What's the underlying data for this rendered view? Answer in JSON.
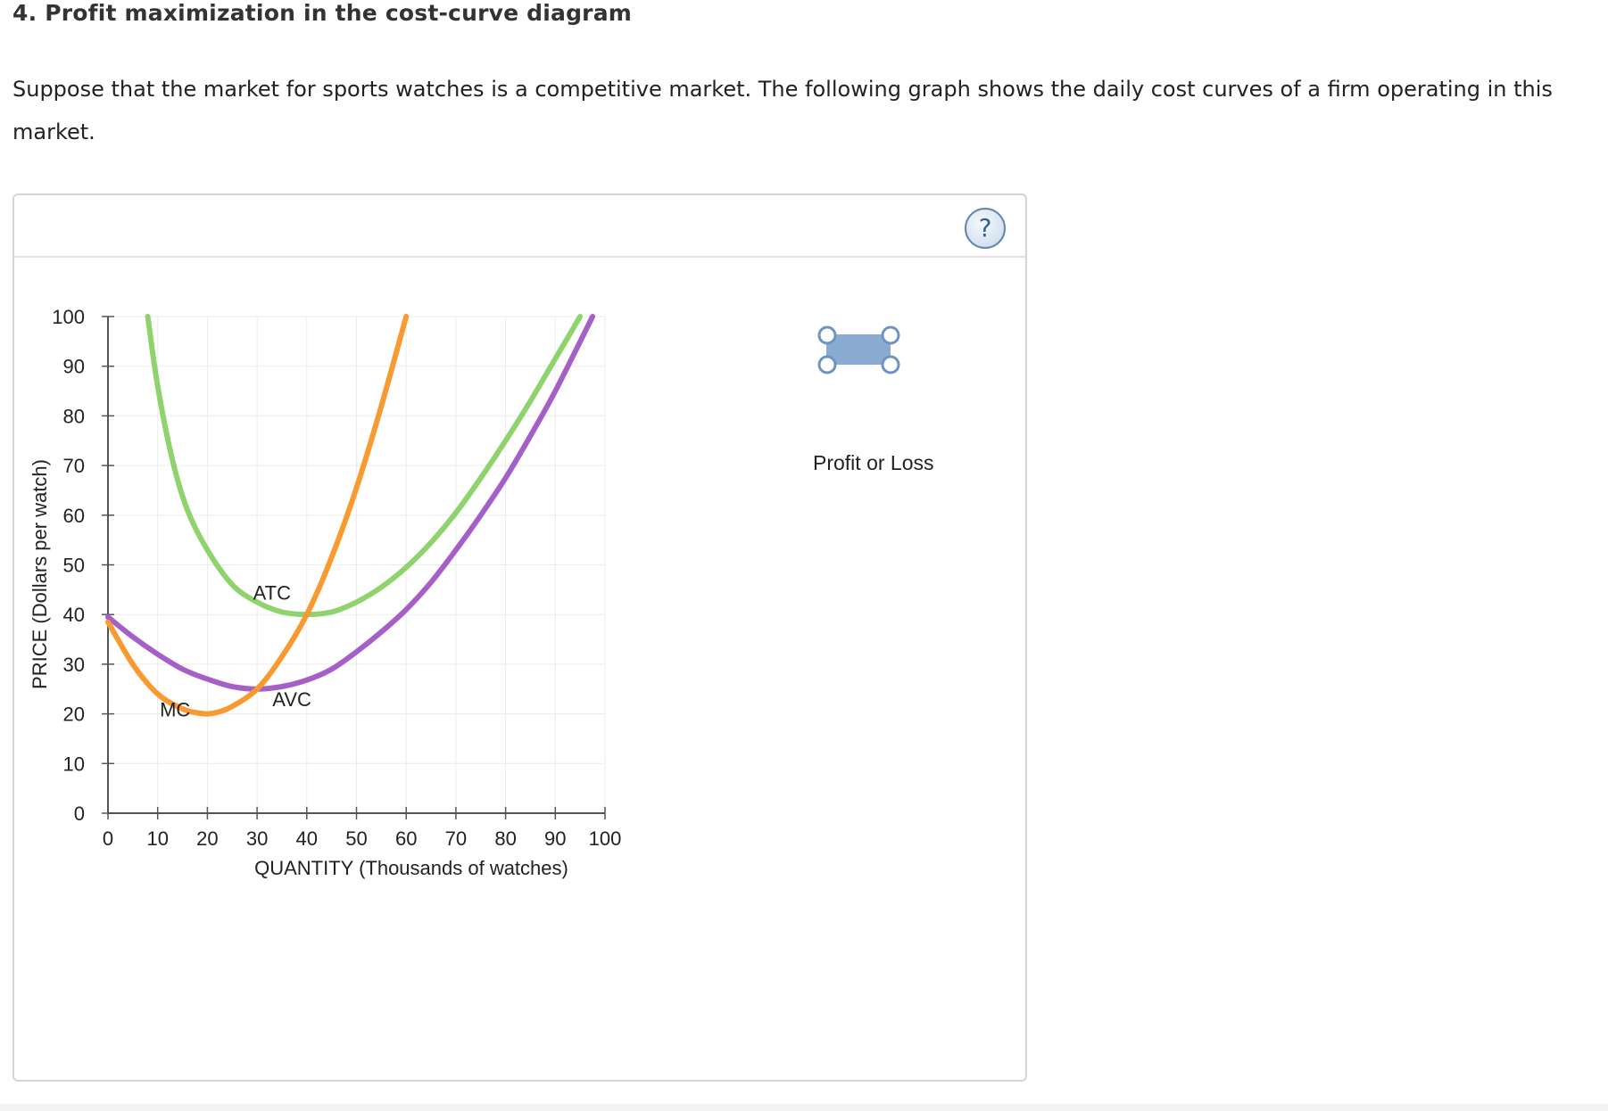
{
  "page": {
    "title": "4. Profit maximization in the cost-curve diagram",
    "intro": "Suppose that the market for sports watches is a competitive market. The following graph shows the daily cost curves of a firm operating in this market."
  },
  "help": {
    "label": "?"
  },
  "legend": {
    "tool_label": "Profit or Loss",
    "tool_color": "#8aabd1",
    "handle_stroke": "#6e93bf"
  },
  "chart_data": {
    "type": "line",
    "xlabel": "QUANTITY (Thousands of watches)",
    "ylabel": "PRICE (Dollars per watch)",
    "xlim": [
      0,
      100
    ],
    "ylim": [
      0,
      100
    ],
    "x_ticks": [
      0,
      10,
      20,
      30,
      40,
      50,
      60,
      70,
      80,
      90,
      100
    ],
    "y_ticks": [
      0,
      10,
      20,
      30,
      40,
      50,
      60,
      70,
      80,
      90,
      100
    ],
    "grid": true,
    "series": [
      {
        "name": "ATC",
        "color": "#8ed36c",
        "x": [
          8,
          10,
          13,
          16,
          20,
          25,
          30,
          35,
          40,
          45,
          50,
          55,
          60,
          65,
          70,
          75,
          80,
          85,
          90,
          95
        ],
        "y": [
          100,
          86,
          71,
          61,
          53,
          46,
          42.5,
          40.5,
          40,
          40.5,
          42.5,
          45.5,
          49.5,
          54.5,
          60.5,
          67.5,
          75,
          83,
          91.5,
          100
        ]
      },
      {
        "name": "AVC",
        "color": "#a560c8",
        "x": [
          0,
          5,
          10,
          15,
          20,
          25,
          30,
          35,
          40,
          45,
          50,
          55,
          60,
          65,
          70,
          75,
          80,
          85,
          90,
          97.5
        ],
        "y": [
          39.5,
          35.5,
          32,
          29,
          27,
          25.5,
          25,
          25.5,
          26.8,
          29,
          32.5,
          36.5,
          41,
          46.5,
          53,
          60,
          67.5,
          76,
          85,
          100
        ]
      },
      {
        "name": "MC",
        "color": "#f89a30",
        "x": [
          0,
          5,
          10,
          15,
          18,
          20,
          22,
          25,
          30,
          35,
          40,
          45,
          50,
          55,
          60
        ],
        "y": [
          38.5,
          30,
          24,
          21,
          20.2,
          20,
          20.3,
          21.5,
          25,
          31.5,
          40,
          51.5,
          65.5,
          82,
          100
        ]
      }
    ],
    "annotations": [
      {
        "text": "ATC",
        "x": 33,
        "y": 43
      },
      {
        "text": "AVC",
        "x": 37,
        "y": 21.5
      },
      {
        "text": "MC",
        "x": 13.5,
        "y": 19.5
      }
    ]
  }
}
